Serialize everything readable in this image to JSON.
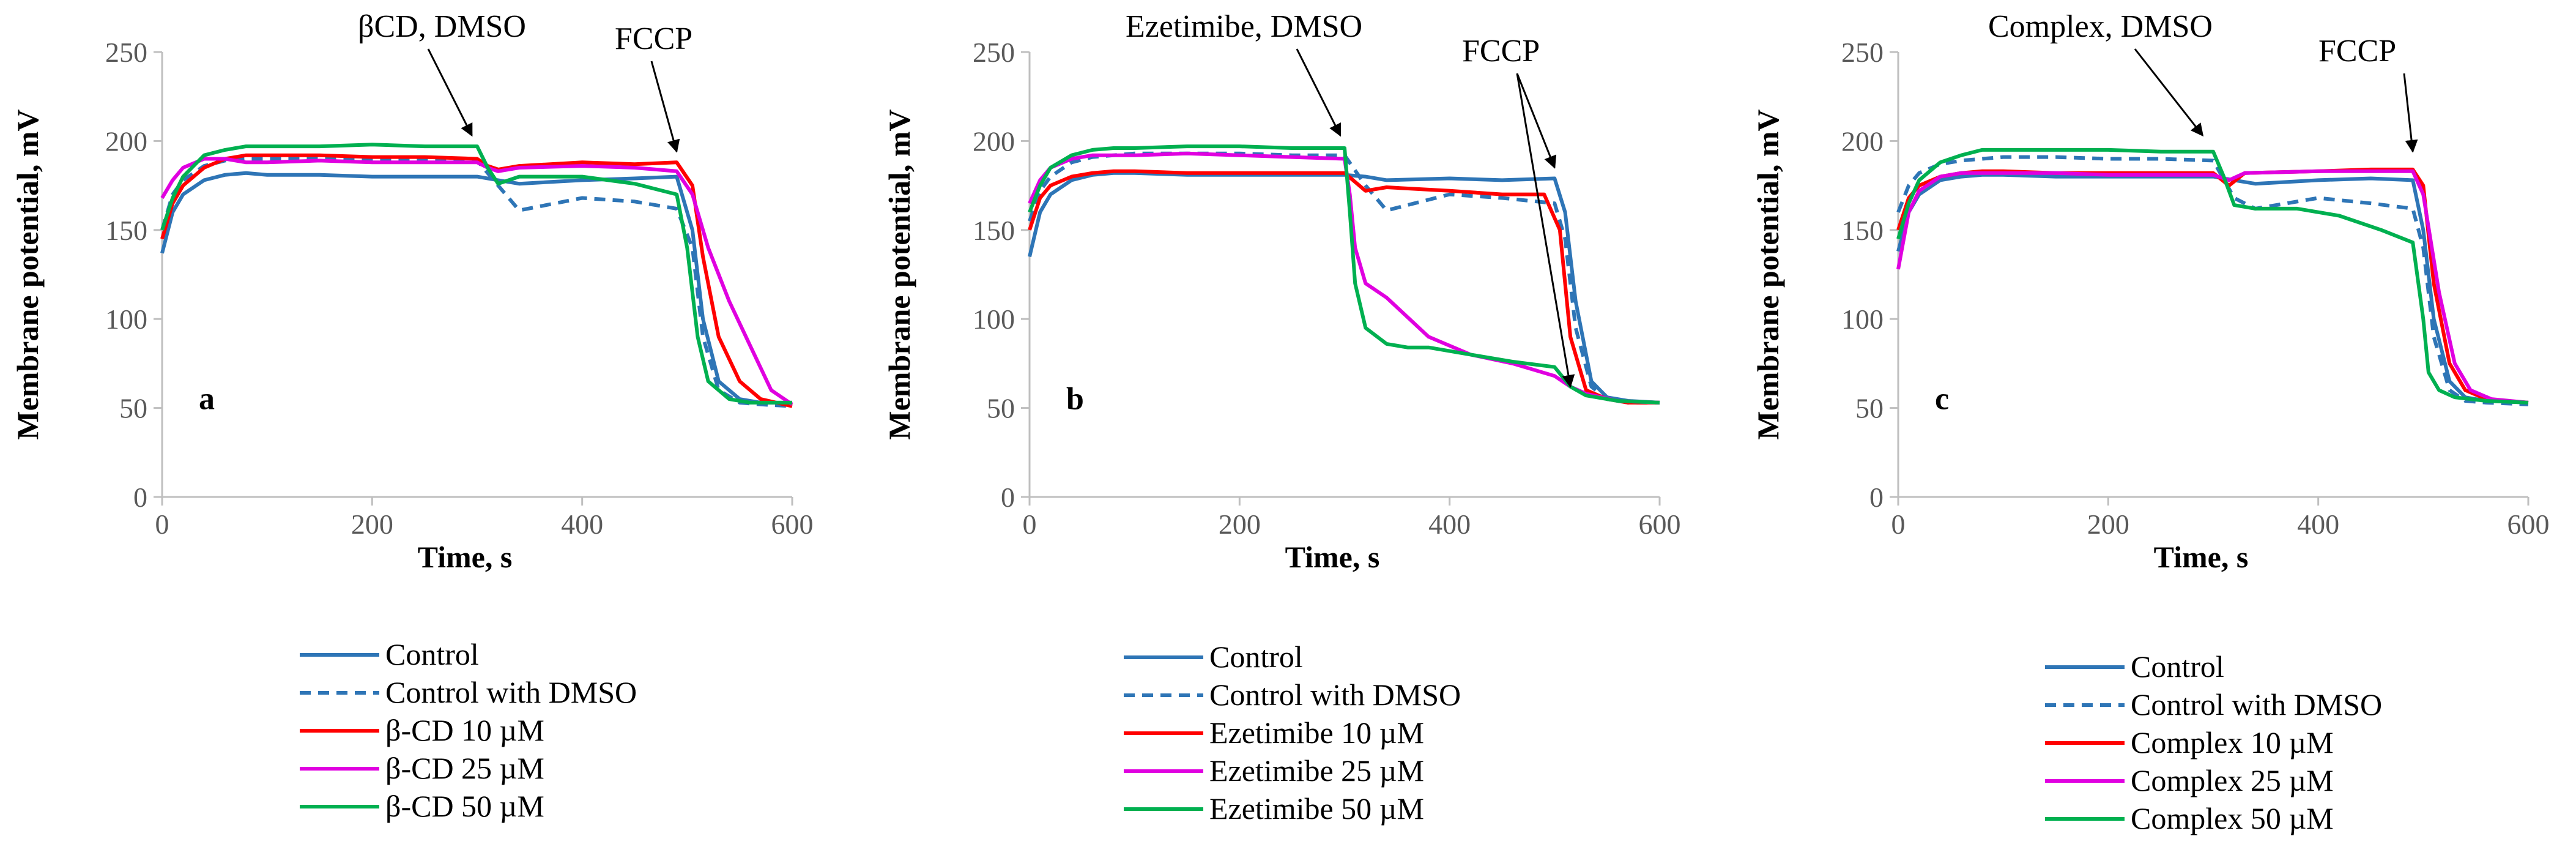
{
  "series_styles": [
    {
      "name": "Control",
      "color": "#2E75B6",
      "dashed": false
    },
    {
      "name": "Control with DMSO",
      "color": "#2E75B6",
      "dashed": true
    },
    {
      "name": "10 µM",
      "color": "#FF0000",
      "dashed": false
    },
    {
      "name": "25 µM",
      "color": "#E000E0",
      "dashed": false
    },
    {
      "name": "50 µM",
      "color": "#00B050",
      "dashed": false
    }
  ],
  "chart_data": [
    {
      "type": "line",
      "panel": "a",
      "xlabel": "Time, s",
      "ylabel": "Membrane potential, mV",
      "xlim": [
        0,
        600
      ],
      "ylim": [
        0,
        250
      ],
      "xticks": [
        0,
        200,
        400,
        600
      ],
      "yticks": [
        0,
        50,
        100,
        150,
        200,
        250
      ],
      "annotations": [
        {
          "text": "βCD, DMSO",
          "points_to": [
            295,
            201
          ]
        },
        {
          "text": "FCCP",
          "points_to": [
            490,
            192
          ]
        }
      ],
      "series": [
        {
          "name": "Control",
          "x": [
            0,
            10,
            20,
            40,
            60,
            80,
            100,
            150,
            200,
            250,
            300,
            320,
            340,
            400,
            450,
            490,
            505,
            515,
            530,
            550,
            570,
            600
          ],
          "y": [
            137,
            160,
            170,
            178,
            181,
            182,
            181,
            181,
            180,
            180,
            180,
            178,
            176,
            178,
            179,
            180,
            150,
            100,
            65,
            55,
            53,
            53
          ]
        },
        {
          "name": "Control with DMSO",
          "x": [
            0,
            10,
            20,
            40,
            60,
            80,
            100,
            150,
            200,
            250,
            300,
            320,
            340,
            400,
            450,
            490,
            505,
            515,
            530,
            550,
            570,
            600
          ],
          "y": [
            150,
            170,
            178,
            186,
            189,
            190,
            190,
            190,
            190,
            190,
            189,
            175,
            161,
            168,
            166,
            162,
            140,
            90,
            60,
            53,
            52,
            51
          ]
        },
        {
          "name": "β-CD 10 µM",
          "x": [
            0,
            10,
            20,
            40,
            60,
            80,
            100,
            150,
            200,
            250,
            300,
            310,
            320,
            340,
            400,
            450,
            490,
            505,
            515,
            530,
            550,
            570,
            600
          ],
          "y": [
            145,
            165,
            175,
            185,
            190,
            192,
            192,
            192,
            191,
            191,
            190,
            186,
            184,
            186,
            188,
            187,
            188,
            175,
            135,
            90,
            65,
            55,
            51
          ]
        },
        {
          "name": "β-CD 25 µM",
          "x": [
            0,
            10,
            20,
            40,
            60,
            80,
            100,
            150,
            200,
            250,
            300,
            310,
            320,
            340,
            400,
            450,
            490,
            505,
            520,
            540,
            560,
            580,
            600
          ],
          "y": [
            168,
            178,
            185,
            190,
            190,
            188,
            188,
            189,
            188,
            188,
            188,
            185,
            183,
            185,
            186,
            185,
            183,
            170,
            140,
            110,
            85,
            60,
            52
          ]
        },
        {
          "name": "β-CD 50 µM",
          "x": [
            0,
            10,
            20,
            40,
            60,
            80,
            100,
            150,
            200,
            250,
            300,
            310,
            320,
            340,
            400,
            450,
            490,
            500,
            510,
            520,
            540,
            560,
            600
          ],
          "y": [
            150,
            168,
            180,
            192,
            195,
            197,
            197,
            197,
            198,
            197,
            197,
            185,
            176,
            180,
            180,
            176,
            170,
            140,
            90,
            65,
            55,
            53,
            53
          ]
        }
      ],
      "legend": [
        "Control",
        "Control with DMSO",
        "β-CD 10 µM",
        "β-CD 25 µM",
        "β-CD 50 µM"
      ]
    },
    {
      "type": "line",
      "panel": "b",
      "xlabel": "Time, s",
      "ylabel": "Membrane potential, mV",
      "xlim": [
        0,
        600
      ],
      "ylim": [
        0,
        250
      ],
      "xticks": [
        0,
        200,
        400,
        600
      ],
      "yticks": [
        0,
        50,
        100,
        150,
        200,
        250
      ],
      "annotations": [
        {
          "text": "Ezetimibe, DMSO",
          "points_to": [
            296,
            201
          ]
        },
        {
          "text": "FCCP",
          "points_to": [
            500,
            183
          ],
          "points_to_2": [
            515,
            62
          ]
        }
      ],
      "series": [
        {
          "name": "Control",
          "x": [
            0,
            10,
            20,
            40,
            60,
            80,
            100,
            150,
            200,
            250,
            300,
            320,
            340,
            400,
            450,
            500,
            510,
            520,
            535,
            550,
            570,
            600
          ],
          "y": [
            135,
            160,
            170,
            178,
            181,
            182,
            182,
            181,
            181,
            181,
            181,
            180,
            178,
            179,
            178,
            179,
            160,
            110,
            65,
            56,
            54,
            53
          ]
        },
        {
          "name": "Control with DMSO",
          "x": [
            0,
            10,
            20,
            40,
            60,
            80,
            100,
            150,
            200,
            250,
            300,
            320,
            340,
            400,
            450,
            500,
            510,
            520,
            535,
            550,
            570,
            600
          ],
          "y": [
            155,
            172,
            180,
            188,
            191,
            192,
            193,
            193,
            193,
            192,
            192,
            175,
            161,
            170,
            168,
            165,
            145,
            95,
            62,
            55,
            53,
            53
          ]
        },
        {
          "name": "Ezetimibe 10 µM",
          "x": [
            0,
            10,
            20,
            40,
            60,
            80,
            100,
            150,
            200,
            250,
            300,
            320,
            340,
            400,
            450,
            490,
            505,
            515,
            530,
            550,
            570,
            600
          ],
          "y": [
            150,
            168,
            175,
            180,
            182,
            183,
            183,
            182,
            182,
            182,
            182,
            172,
            174,
            172,
            170,
            170,
            150,
            90,
            60,
            55,
            53,
            53
          ]
        },
        {
          "name": "Ezetimibe 25 µM",
          "x": [
            0,
            10,
            20,
            40,
            60,
            80,
            100,
            150,
            200,
            250,
            300,
            305,
            310,
            320,
            340,
            380,
            420,
            460,
            500,
            515,
            530,
            560,
            600
          ],
          "y": [
            165,
            178,
            185,
            190,
            192,
            192,
            192,
            193,
            192,
            191,
            190,
            170,
            140,
            120,
            112,
            90,
            80,
            75,
            68,
            62,
            58,
            54,
            53
          ]
        },
        {
          "name": "Ezetimibe 50 µM",
          "x": [
            0,
            10,
            20,
            40,
            60,
            80,
            100,
            150,
            200,
            250,
            300,
            305,
            310,
            320,
            340,
            360,
            380,
            420,
            460,
            500,
            515,
            530,
            560,
            600
          ],
          "y": [
            160,
            175,
            185,
            192,
            195,
            196,
            196,
            197,
            197,
            196,
            196,
            160,
            120,
            95,
            86,
            84,
            84,
            80,
            76,
            73,
            62,
            57,
            54,
            53
          ]
        }
      ],
      "legend": [
        "Control",
        "Control with DMSO",
        "Ezetimibe 10 µM",
        "Ezetimibe 25 µM",
        "Ezetimibe 50 µM"
      ]
    },
    {
      "type": "line",
      "panel": "c",
      "xlabel": "Time, s",
      "ylabel": "Membrane potential, mV",
      "xlim": [
        0,
        600
      ],
      "ylim": [
        0,
        250
      ],
      "xticks": [
        0,
        200,
        400,
        600
      ],
      "yticks": [
        0,
        50,
        100,
        150,
        200,
        250
      ],
      "annotations": [
        {
          "text": "Complex, DMSO",
          "points_to": [
            290,
            201
          ]
        },
        {
          "text": "FCCP",
          "points_to": [
            490,
            192
          ]
        }
      ],
      "series": [
        {
          "name": "Control",
          "x": [
            0,
            10,
            20,
            40,
            60,
            80,
            100,
            150,
            200,
            250,
            300,
            320,
            340,
            400,
            450,
            490,
            500,
            510,
            525,
            540,
            560,
            600
          ],
          "y": [
            138,
            160,
            170,
            178,
            180,
            181,
            181,
            180,
            180,
            180,
            180,
            178,
            176,
            178,
            179,
            178,
            150,
            100,
            65,
            56,
            54,
            53
          ]
        },
        {
          "name": "Control with DMSO",
          "x": [
            0,
            10,
            20,
            40,
            60,
            80,
            100,
            150,
            200,
            250,
            300,
            320,
            340,
            400,
            450,
            490,
            500,
            510,
            525,
            540,
            560,
            600
          ],
          "y": [
            160,
            175,
            182,
            187,
            189,
            190,
            191,
            191,
            190,
            190,
            189,
            168,
            162,
            168,
            165,
            162,
            140,
            90,
            60,
            54,
            53,
            52
          ]
        },
        {
          "name": "Complex 10 µM",
          "x": [
            0,
            10,
            20,
            40,
            60,
            80,
            100,
            150,
            200,
            250,
            300,
            315,
            330,
            400,
            450,
            490,
            500,
            510,
            525,
            540,
            560,
            600
          ],
          "y": [
            150,
            168,
            175,
            180,
            182,
            183,
            183,
            182,
            182,
            182,
            182,
            175,
            182,
            183,
            184,
            184,
            175,
            120,
            75,
            60,
            55,
            53
          ]
        },
        {
          "name": "Complex 25 µM",
          "x": [
            0,
            10,
            20,
            40,
            60,
            80,
            100,
            150,
            200,
            250,
            300,
            315,
            330,
            400,
            450,
            490,
            500,
            515,
            530,
            545,
            565,
            600
          ],
          "y": [
            128,
            160,
            172,
            180,
            182,
            182,
            182,
            182,
            181,
            181,
            181,
            178,
            182,
            183,
            183,
            183,
            170,
            115,
            75,
            60,
            55,
            53
          ]
        },
        {
          "name": "Complex 50 µM",
          "x": [
            0,
            10,
            20,
            40,
            60,
            80,
            100,
            150,
            200,
            250,
            300,
            310,
            320,
            340,
            380,
            420,
            460,
            490,
            500,
            505,
            515,
            530,
            560,
            600
          ],
          "y": [
            145,
            165,
            178,
            188,
            192,
            195,
            195,
            195,
            195,
            194,
            194,
            180,
            164,
            162,
            162,
            158,
            150,
            143,
            100,
            70,
            60,
            56,
            54,
            53
          ]
        }
      ],
      "legend": [
        "Control",
        "Control with DMSO",
        "Complex 10 µM",
        "Complex 25 µM",
        "Complex 50 µM"
      ]
    }
  ]
}
